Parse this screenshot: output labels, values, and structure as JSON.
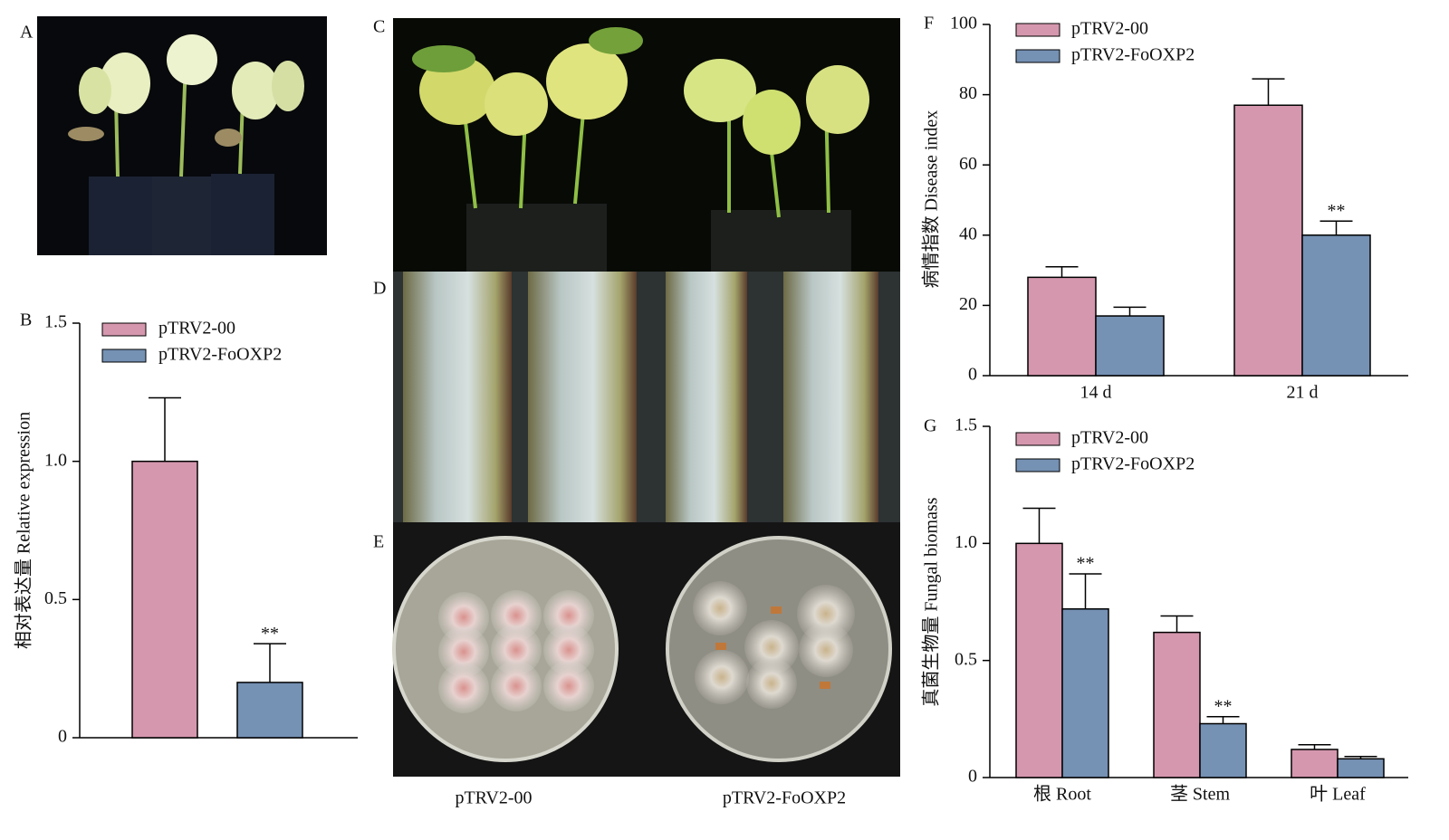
{
  "panel_labels": [
    "A",
    "C",
    "D",
    "E"
  ],
  "photo_captions": [
    "pTRV2-00",
    "pTRV2-FoOXP2"
  ],
  "chart_data": [
    {
      "type": "bar",
      "panel": "B",
      "ylabel": "相对表达量 Relative expression",
      "categories": [
        null
      ],
      "series": [
        {
          "name": "pTRV2-00",
          "color": "#d597ae",
          "values": [
            1.0
          ],
          "errors": [
            0.23
          ],
          "significance": [
            null
          ]
        },
        {
          "name": "pTRV2-FoOXP2",
          "color": "#7591b4",
          "values": [
            0.2
          ],
          "errors": [
            0.14
          ],
          "significance": [
            "**"
          ]
        }
      ],
      "ylim": [
        0,
        1.5
      ],
      "yticks": [
        0,
        0.5,
        {
          "value": 1,
          "label": "1.0"
        },
        1.5
      ]
    },
    {
      "type": "bar",
      "panel": "F",
      "ylabel": "病情指数 Disease index",
      "categories": [
        "14 d",
        "21 d"
      ],
      "series": [
        {
          "name": "pTRV2-00",
          "color": "#d597ae",
          "values": [
            28,
            77
          ],
          "errors": [
            3,
            7.5
          ],
          "significance": [
            null,
            null
          ]
        },
        {
          "name": "pTRV2-FoOXP2",
          "color": "#7591b4",
          "values": [
            17,
            40
          ],
          "errors": [
            2.5,
            4
          ],
          "significance": [
            null,
            "**"
          ]
        }
      ],
      "ylim": [
        0,
        100
      ],
      "yticks": [
        0,
        20,
        40,
        60,
        80,
        100
      ]
    },
    {
      "type": "bar",
      "panel": "G",
      "ylabel": "真菌生物量 Fungal biomass",
      "categories": [
        "根 Root",
        "茎 Stem",
        "叶 Leaf"
      ],
      "series": [
        {
          "name": "pTRV2-00",
          "color": "#d597ae",
          "values": [
            1.0,
            0.62,
            0.12
          ],
          "errors": [
            0.15,
            0.07,
            0.02
          ],
          "significance": [
            null,
            null,
            null
          ]
        },
        {
          "name": "pTRV2-FoOXP2",
          "color": "#7591b4",
          "values": [
            0.72,
            0.23,
            0.08
          ],
          "errors": [
            0.15,
            0.03,
            0.01
          ],
          "significance": [
            "**",
            "**",
            null
          ]
        }
      ],
      "ylim": [
        0,
        1.5
      ],
      "yticks": [
        0,
        0.5,
        {
          "value": 1,
          "label": "1.0"
        },
        1.5
      ]
    }
  ]
}
